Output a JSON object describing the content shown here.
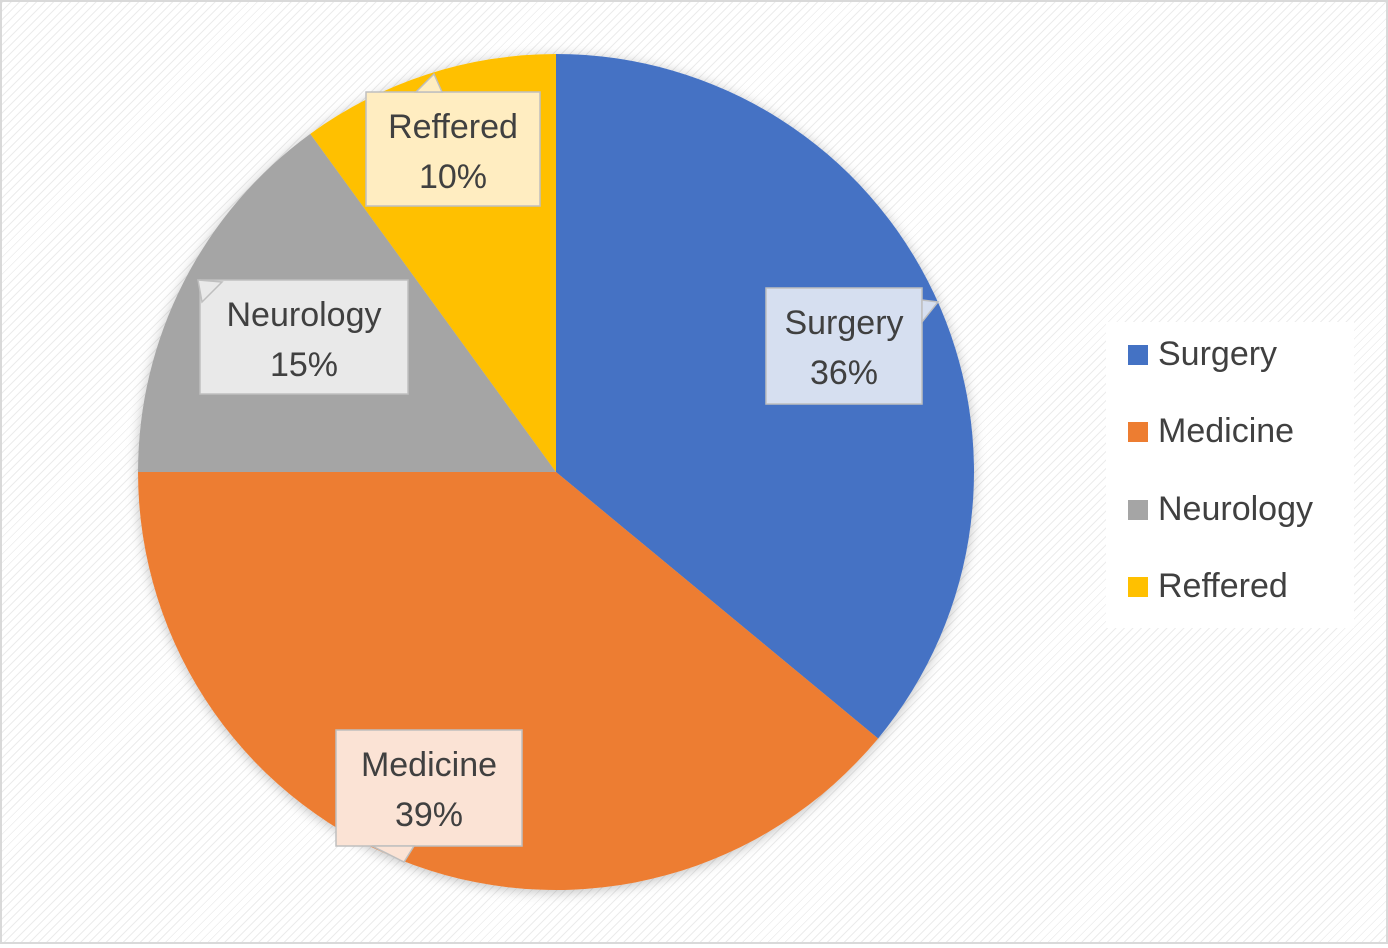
{
  "chart_data": {
    "type": "pie",
    "slices": [
      {
        "label": "Surgery",
        "percent_label": "36%",
        "value": 36,
        "color": "#4472C4",
        "label_fill": "#D6DFF0"
      },
      {
        "label": "Medicine",
        "percent_label": "39%",
        "value": 39,
        "color": "#ED7D31",
        "label_fill": "#FBE3D5"
      },
      {
        "label": "Neurology",
        "percent_label": "15%",
        "value": 15,
        "color": "#A5A5A5",
        "label_fill": "#E9E9E9"
      },
      {
        "label": "Reffered",
        "percent_label": "10%",
        "value": 10,
        "color": "#FFC000",
        "label_fill": "#FFEDC1"
      }
    ],
    "legend": {
      "placement": "right",
      "entries": [
        "Surgery",
        "Medicine",
        "Neurology",
        "Reffered"
      ]
    }
  }
}
